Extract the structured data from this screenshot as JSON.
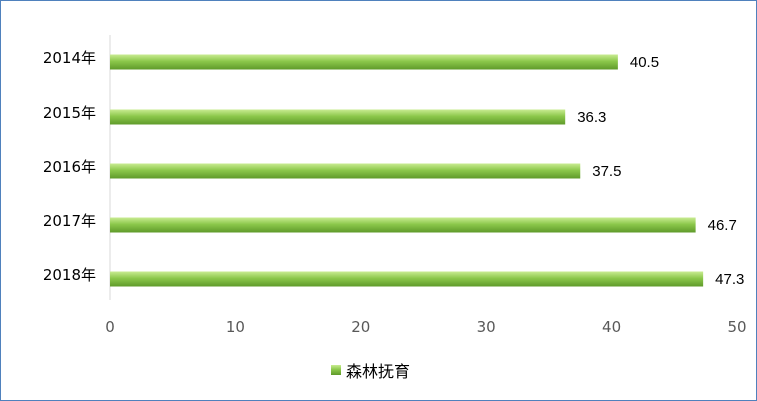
{
  "chart_data": {
    "type": "bar",
    "orientation": "horizontal",
    "categories": [
      "2014年",
      "2015年",
      "2016年",
      "2017年",
      "2018年"
    ],
    "series": [
      {
        "name": "森林抚育",
        "values": [
          40.5,
          36.3,
          37.5,
          46.7,
          47.3
        ]
      }
    ],
    "xlim": [
      0,
      50
    ],
    "xticks": [
      0,
      10,
      20,
      30,
      40,
      50
    ],
    "grid": false,
    "legend": "bottom",
    "colors": {
      "bar_light": "#b5e07a",
      "bar_dark": "#5f9a2a",
      "axis": "#d9d9d9",
      "border": "#4f81bd"
    }
  }
}
